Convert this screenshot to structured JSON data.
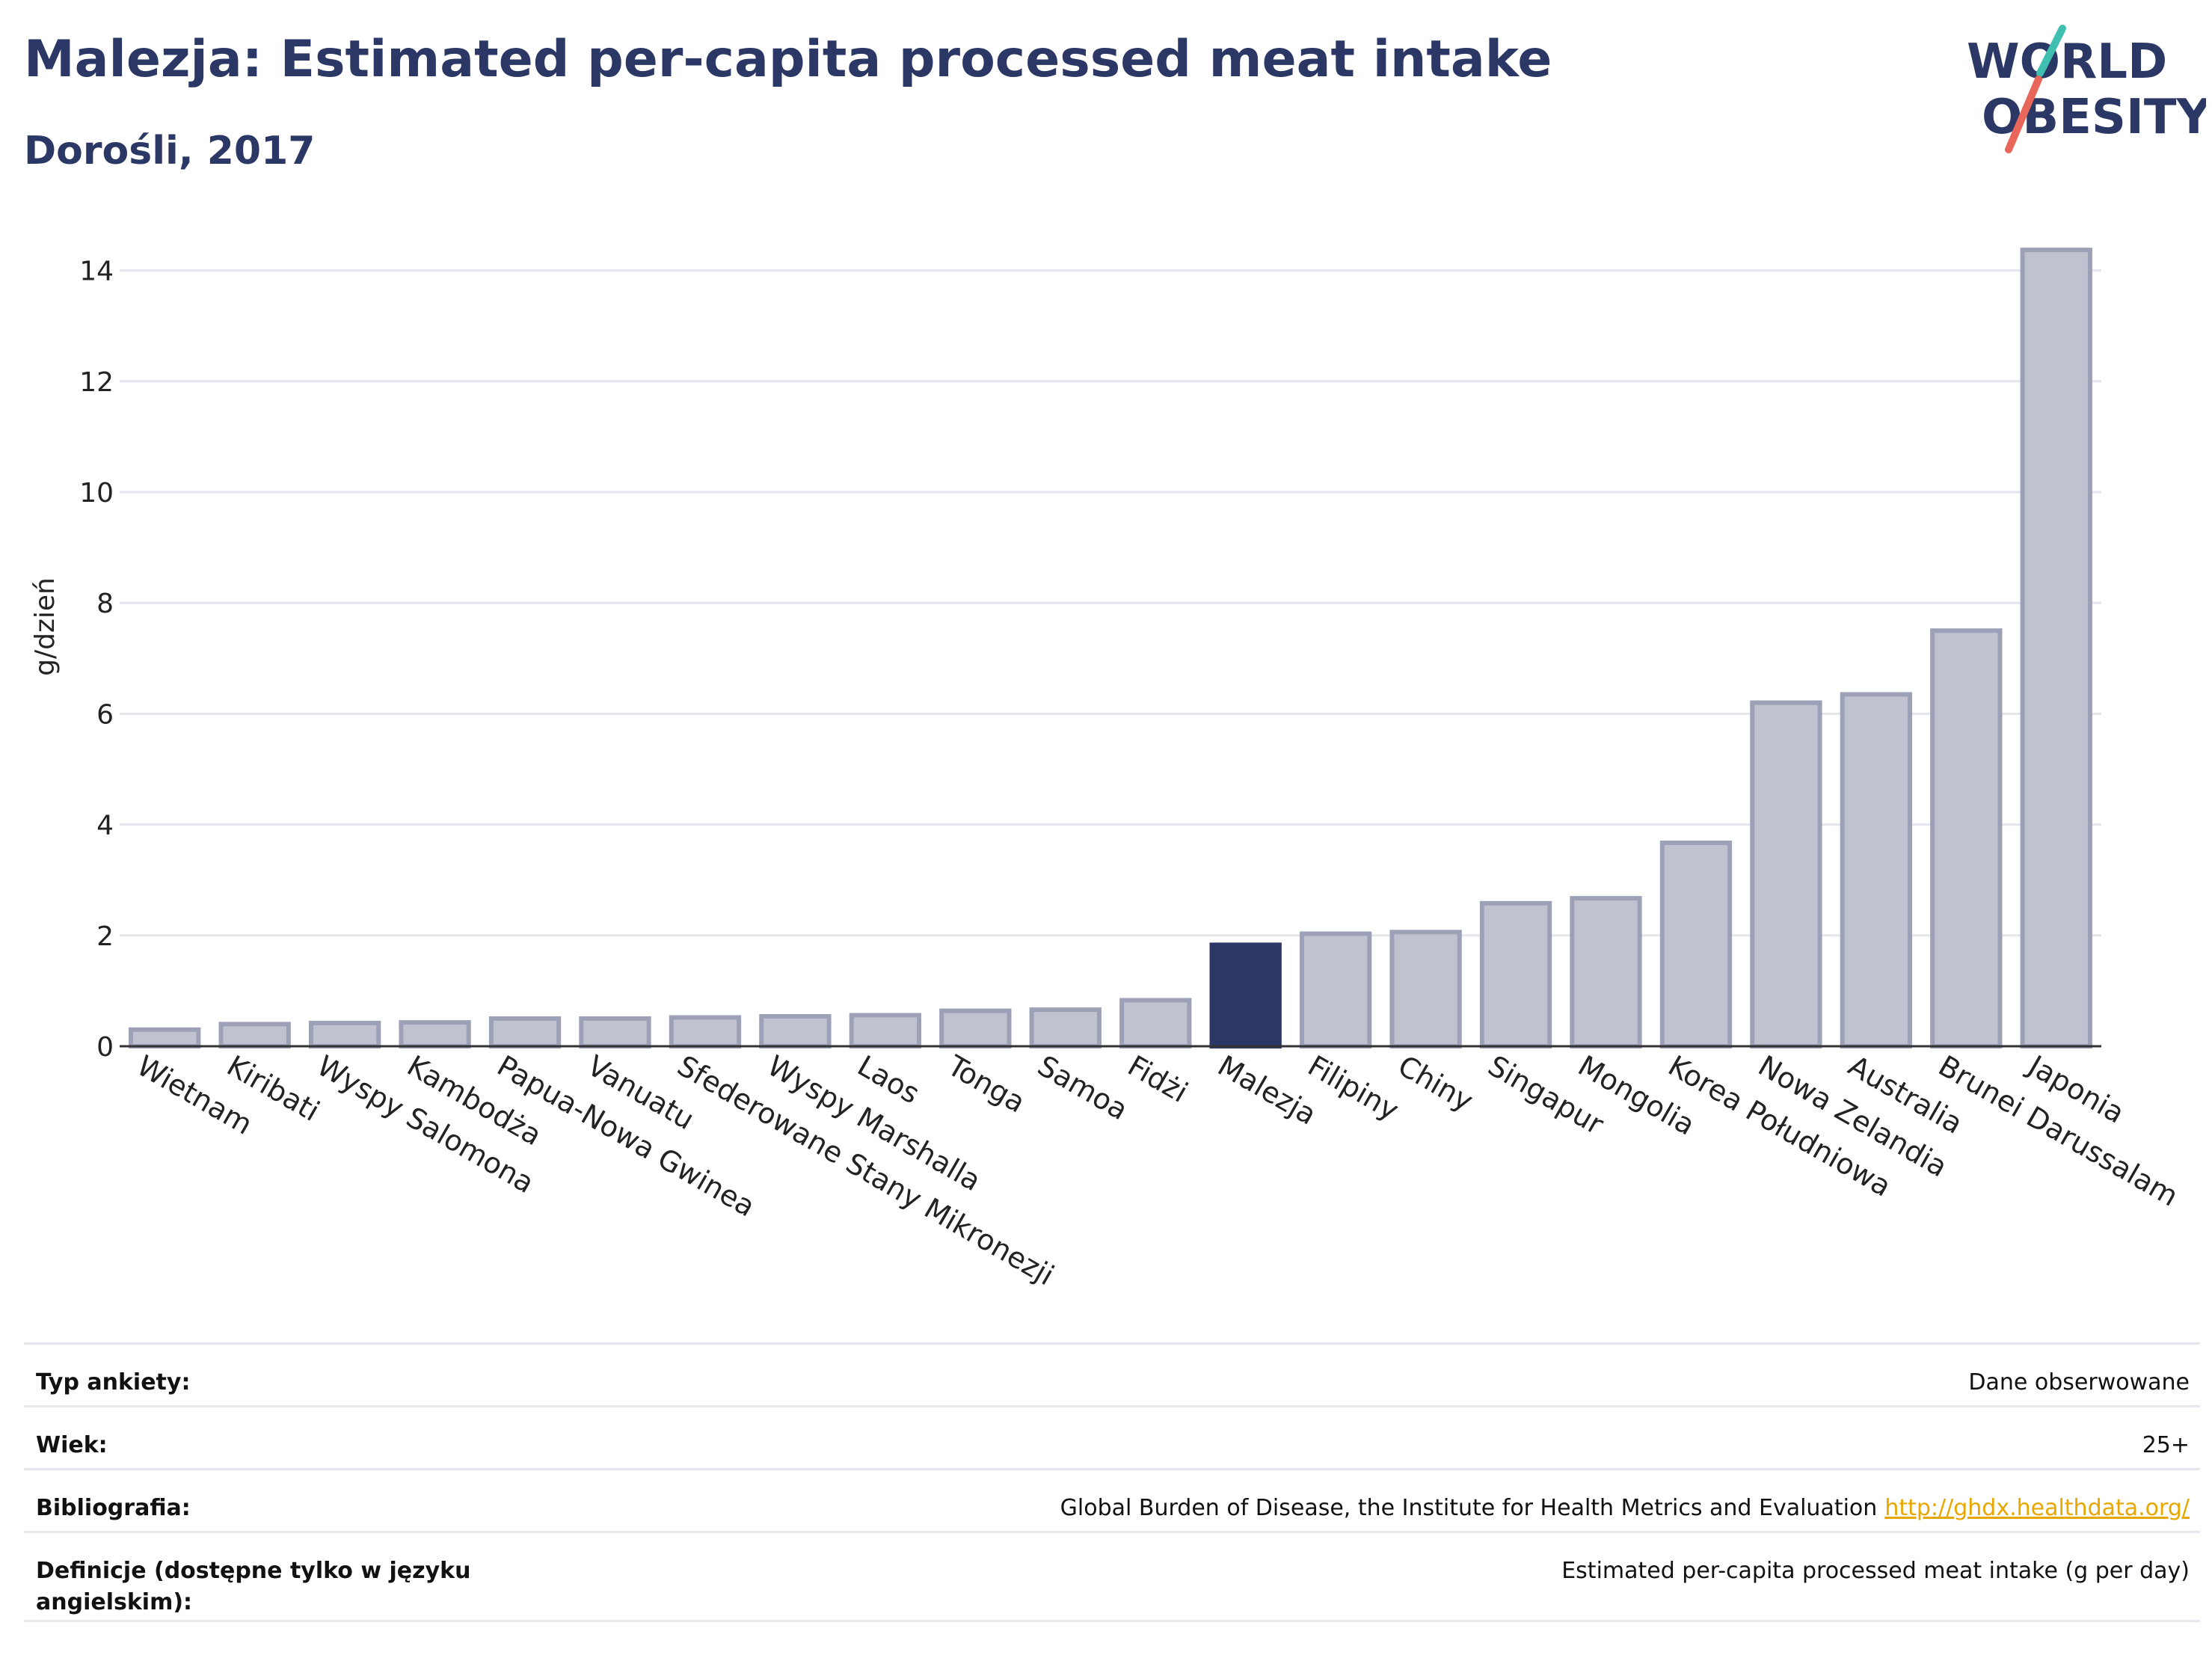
{
  "title": "Malezja: Estimated per-capita processed meat intake",
  "subtitle": "Dorośli, 2017",
  "logo": {
    "line1": "WORLD",
    "line2": "OBESITY"
  },
  "colors": {
    "highlight": "#2b3764",
    "bar": "#c0c3cf",
    "bar_border": "#9ca1b8",
    "text": "#2b3764",
    "link": "#e8a700"
  },
  "chart_data": {
    "type": "bar",
    "ylabel": "g/dzień",
    "ylim": [
      0,
      14.5
    ],
    "yticks": [
      0,
      2,
      4,
      6,
      8,
      10,
      12,
      14
    ],
    "grid": true,
    "highlight": "Malezja",
    "categories": [
      "Wietnam",
      "Kiribati",
      "Wyspy Salomona",
      "Kambodża",
      "Papua-Nowa Gwinea",
      "Vanuatu",
      "Sfederowane Stany Mikronezji",
      "Wyspy Marshalla",
      "Laos",
      "Tonga",
      "Samoa",
      "Fidżi",
      "Malezja",
      "Filipiny",
      "Chiny",
      "Singapur",
      "Mongolia",
      "Korea Południowa",
      "Nowa Zelandia",
      "Australia",
      "Brunei Darussalam",
      "Japonia"
    ],
    "values": [
      0.3,
      0.4,
      0.42,
      0.43,
      0.5,
      0.5,
      0.52,
      0.54,
      0.56,
      0.64,
      0.66,
      0.83,
      1.83,
      2.03,
      2.06,
      2.58,
      2.67,
      3.67,
      6.2,
      6.35,
      7.5,
      14.37
    ]
  },
  "meta": {
    "survey_label": "Typ ankiety:",
    "survey_value": "Dane obserwowane",
    "age_label": "Wiek:",
    "age_value": "25+",
    "biblio_label": "Bibliografia:",
    "biblio_value": "Global Burden of Disease, the Institute for Health Metrics and Evaluation",
    "biblio_link": "http://ghdx.healthdata.org/",
    "def_label": "Definicje (dostępne tylko w języku angielskim):",
    "def_value": "Estimated per-capita processed meat intake (g per day)"
  }
}
